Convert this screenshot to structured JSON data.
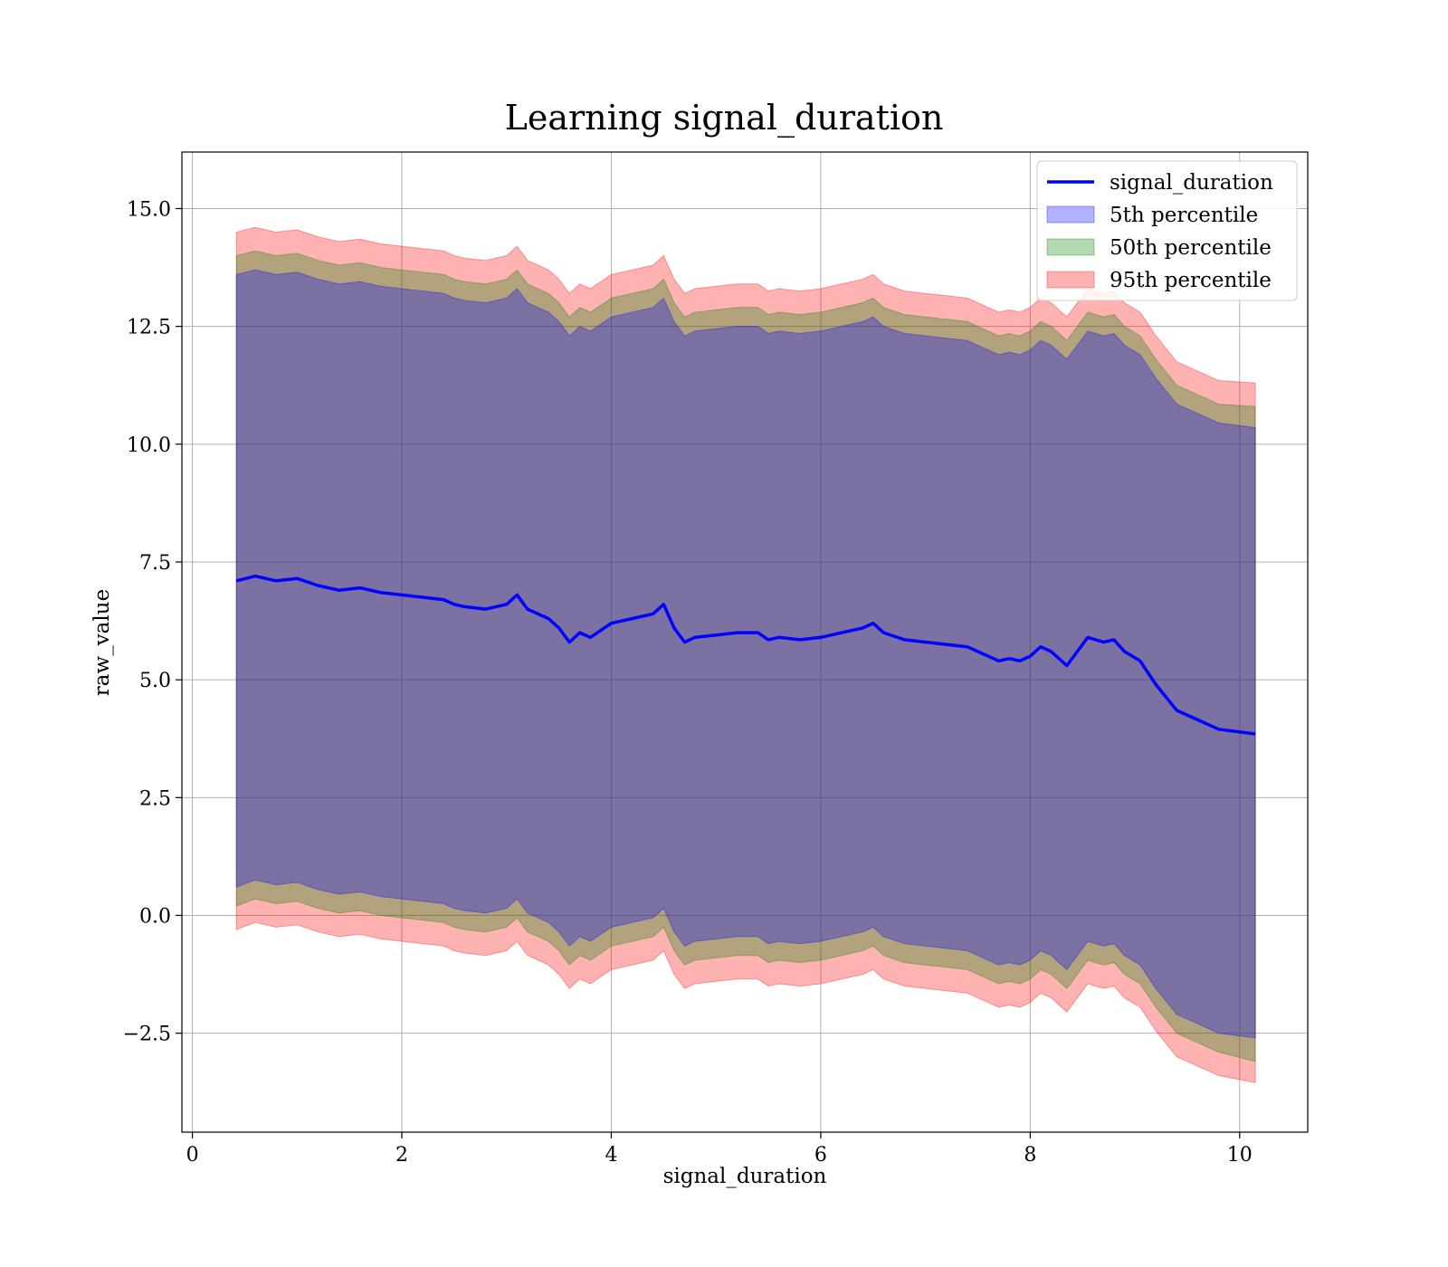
{
  "chart_data": {
    "type": "line",
    "title": "Learning signal_duration",
    "xlabel": "signal_duration",
    "ylabel": "raw_value",
    "xlim": [
      -0.1,
      10.65
    ],
    "ylim": [
      -4.6,
      16.2
    ],
    "xticks": [
      0,
      2,
      4,
      6,
      8,
      10
    ],
    "xtick_labels": [
      "0",
      "2",
      "4",
      "6",
      "8",
      "10"
    ],
    "yticks": [
      -2.5,
      0.0,
      2.5,
      5.0,
      7.5,
      10.0,
      12.5,
      15.0
    ],
    "ytick_labels": [
      "−2.5",
      "0.0",
      "2.5",
      "5.0",
      "7.5",
      "10.0",
      "12.5",
      "15.0"
    ],
    "grid": true,
    "legend_position": "top-right",
    "x": [
      0.42,
      0.6,
      0.8,
      1.0,
      1.2,
      1.4,
      1.6,
      1.8,
      2.0,
      2.2,
      2.4,
      2.5,
      2.6,
      2.8,
      3.0,
      3.1,
      3.2,
      3.4,
      3.5,
      3.6,
      3.7,
      3.8,
      4.0,
      4.2,
      4.4,
      4.5,
      4.6,
      4.7,
      4.8,
      5.0,
      5.2,
      5.4,
      5.5,
      5.6,
      5.8,
      6.0,
      6.2,
      6.4,
      6.5,
      6.6,
      6.8,
      7.0,
      7.2,
      7.4,
      7.6,
      7.7,
      7.8,
      7.9,
      8.0,
      8.1,
      8.2,
      8.35,
      8.55,
      8.7,
      8.8,
      8.9,
      9.05,
      9.2,
      9.4,
      9.6,
      9.8,
      10.15
    ],
    "series": [
      {
        "name": "signal_duration",
        "color": "#0000ff",
        "values": [
          7.1,
          7.2,
          7.1,
          7.15,
          7.0,
          6.9,
          6.95,
          6.85,
          6.8,
          6.75,
          6.7,
          6.6,
          6.55,
          6.5,
          6.6,
          6.8,
          6.5,
          6.3,
          6.1,
          5.8,
          6.0,
          5.9,
          6.2,
          6.3,
          6.4,
          6.6,
          6.1,
          5.8,
          5.9,
          5.95,
          6.0,
          6.0,
          5.85,
          5.9,
          5.85,
          5.9,
          6.0,
          6.1,
          6.2,
          6.0,
          5.85,
          5.8,
          5.75,
          5.7,
          5.5,
          5.4,
          5.45,
          5.4,
          5.5,
          5.7,
          5.6,
          5.3,
          5.9,
          5.8,
          5.85,
          5.6,
          5.4,
          4.9,
          4.35,
          4.15,
          3.95,
          3.85
        ]
      },
      {
        "name": "5th percentile",
        "color": "#0000ff",
        "lower": [
          0.6,
          0.75,
          0.65,
          0.7,
          0.55,
          0.45,
          0.5,
          0.4,
          0.35,
          0.3,
          0.25,
          0.15,
          0.1,
          0.05,
          0.15,
          0.35,
          0.05,
          -0.15,
          -0.35,
          -0.65,
          -0.45,
          -0.55,
          -0.25,
          -0.15,
          -0.05,
          0.15,
          -0.35,
          -0.65,
          -0.55,
          -0.5,
          -0.45,
          -0.45,
          -0.6,
          -0.55,
          -0.6,
          -0.55,
          -0.45,
          -0.35,
          -0.25,
          -0.45,
          -0.6,
          -0.65,
          -0.7,
          -0.75,
          -0.95,
          -1.05,
          -1.0,
          -1.05,
          -0.95,
          -0.75,
          -0.85,
          -1.15,
          -0.55,
          -0.65,
          -0.6,
          -0.85,
          -1.05,
          -1.55,
          -2.1,
          -2.3,
          -2.5,
          -2.6
        ],
        "upper": [
          13.6,
          13.7,
          13.6,
          13.65,
          13.5,
          13.4,
          13.45,
          13.35,
          13.3,
          13.25,
          13.2,
          13.1,
          13.05,
          13.0,
          13.1,
          13.3,
          13.0,
          12.8,
          12.6,
          12.3,
          12.5,
          12.4,
          12.7,
          12.8,
          12.9,
          13.1,
          12.6,
          12.3,
          12.4,
          12.45,
          12.5,
          12.5,
          12.35,
          12.4,
          12.35,
          12.4,
          12.5,
          12.6,
          12.7,
          12.5,
          12.35,
          12.3,
          12.25,
          12.2,
          12.0,
          11.9,
          11.95,
          11.9,
          12.0,
          12.2,
          12.1,
          11.8,
          12.4,
          12.3,
          12.35,
          12.1,
          11.9,
          11.4,
          10.85,
          10.65,
          10.45,
          10.35
        ]
      },
      {
        "name": "50th percentile",
        "color": "#008000",
        "lower": [
          0.2,
          0.35,
          0.25,
          0.3,
          0.15,
          0.05,
          0.1,
          0.0,
          -0.05,
          -0.1,
          -0.15,
          -0.25,
          -0.3,
          -0.35,
          -0.25,
          -0.05,
          -0.35,
          -0.55,
          -0.75,
          -1.05,
          -0.85,
          -0.95,
          -0.65,
          -0.55,
          -0.45,
          -0.25,
          -0.75,
          -1.05,
          -0.95,
          -0.9,
          -0.85,
          -0.85,
          -1.0,
          -0.95,
          -1.0,
          -0.95,
          -0.85,
          -0.75,
          -0.65,
          -0.85,
          -1.0,
          -1.05,
          -1.1,
          -1.15,
          -1.35,
          -1.45,
          -1.4,
          -1.45,
          -1.35,
          -1.15,
          -1.25,
          -1.55,
          -0.95,
          -1.05,
          -1.0,
          -1.25,
          -1.45,
          -1.95,
          -2.5,
          -2.7,
          -2.9,
          -3.1
        ],
        "upper": [
          14.0,
          14.1,
          14.0,
          14.05,
          13.9,
          13.8,
          13.85,
          13.75,
          13.7,
          13.65,
          13.6,
          13.5,
          13.45,
          13.4,
          13.5,
          13.7,
          13.4,
          13.2,
          13.0,
          12.7,
          12.9,
          12.8,
          13.1,
          13.2,
          13.3,
          13.5,
          13.0,
          12.7,
          12.8,
          12.85,
          12.9,
          12.9,
          12.75,
          12.8,
          12.75,
          12.8,
          12.9,
          13.0,
          13.1,
          12.9,
          12.75,
          12.7,
          12.65,
          12.6,
          12.4,
          12.3,
          12.35,
          12.3,
          12.4,
          12.6,
          12.5,
          12.2,
          12.8,
          12.7,
          12.75,
          12.5,
          12.3,
          11.8,
          11.25,
          11.05,
          10.85,
          10.8
        ]
      },
      {
        "name": "95th percentile",
        "color": "#ff0000",
        "lower": [
          -0.3,
          -0.15,
          -0.25,
          -0.2,
          -0.35,
          -0.45,
          -0.4,
          -0.5,
          -0.55,
          -0.6,
          -0.65,
          -0.75,
          -0.8,
          -0.85,
          -0.75,
          -0.55,
          -0.85,
          -1.05,
          -1.25,
          -1.55,
          -1.35,
          -1.45,
          -1.15,
          -1.05,
          -0.95,
          -0.75,
          -1.25,
          -1.55,
          -1.45,
          -1.4,
          -1.35,
          -1.35,
          -1.5,
          -1.45,
          -1.5,
          -1.45,
          -1.35,
          -1.25,
          -1.15,
          -1.35,
          -1.5,
          -1.55,
          -1.6,
          -1.65,
          -1.85,
          -1.95,
          -1.9,
          -1.95,
          -1.85,
          -1.65,
          -1.75,
          -2.05,
          -1.45,
          -1.55,
          -1.5,
          -1.75,
          -1.95,
          -2.45,
          -3.0,
          -3.2,
          -3.4,
          -3.55
        ],
        "upper": [
          14.5,
          14.6,
          14.5,
          14.55,
          14.4,
          14.3,
          14.35,
          14.25,
          14.2,
          14.15,
          14.1,
          14.0,
          13.95,
          13.9,
          14.0,
          14.2,
          13.9,
          13.7,
          13.5,
          13.2,
          13.4,
          13.3,
          13.6,
          13.7,
          13.8,
          14.0,
          13.5,
          13.2,
          13.3,
          13.35,
          13.4,
          13.4,
          13.25,
          13.3,
          13.25,
          13.3,
          13.4,
          13.5,
          13.6,
          13.4,
          13.25,
          13.2,
          13.15,
          13.1,
          12.9,
          12.8,
          12.85,
          12.8,
          12.9,
          13.1,
          13.0,
          12.7,
          13.3,
          13.2,
          13.25,
          13.0,
          12.8,
          12.3,
          11.75,
          11.55,
          11.35,
          11.3
        ]
      }
    ]
  }
}
